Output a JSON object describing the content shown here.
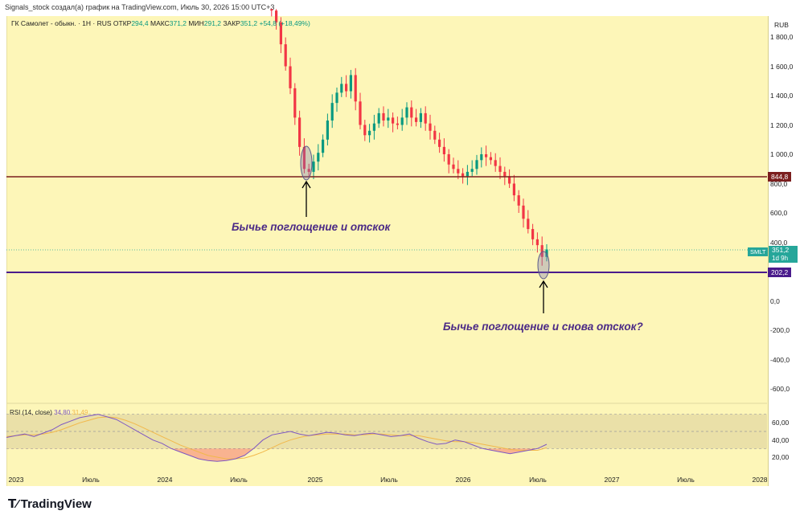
{
  "attribution": "Signals_stock создал(а) график на TradingView.com, Июль 30, 2026 15:00 UTC+3",
  "legend": {
    "symbol": "ГК Самолет - обыкн. · 1Н · RUS",
    "open_label": "ОТКР",
    "open": "294,4",
    "high_label": "МАКС",
    "high": "371,2",
    "low_label": "МИН",
    "low": "291,2",
    "close_label": "ЗАКР",
    "close": "351,2",
    "change": "+54,8 (+18,49%)"
  },
  "currency": "RUB",
  "brand": "TradingView",
  "colors": {
    "background": "#fdf6b8",
    "up": "#089981",
    "down": "#f23645",
    "resistance_line": "#7b1e1e",
    "support_line": "#4a1b8c",
    "rsi_line": "#7e57c2",
    "rsi_ma": "#f2b84b",
    "annotation": "#4b2a86"
  },
  "price_tags": {
    "level_high": "844,8",
    "level_low": "202,2",
    "symbol": "SMLT",
    "last": "351,2",
    "countdown": "1d 9h"
  },
  "annotations": [
    "Бычье поглощение и отскок",
    "Бычье поглощение и снова отскок?"
  ],
  "rsi": {
    "label": "RSI (14, close)",
    "value": "34,80",
    "ma_value": "31,49",
    "ticks": [
      "60,00",
      "40,00",
      "20,00"
    ],
    "upper_band": 70,
    "lower_band": 30,
    "values": [
      43,
      45,
      47,
      44,
      48,
      52,
      58,
      62,
      66,
      68,
      70,
      67,
      64,
      58,
      52,
      46,
      40,
      36,
      30,
      26,
      22,
      18,
      16,
      15,
      16,
      18,
      22,
      30,
      40,
      46,
      48,
      50,
      47,
      45,
      47,
      49,
      48,
      46,
      45,
      47,
      48,
      46,
      44,
      45,
      47,
      42,
      38,
      35,
      36,
      40,
      38,
      34,
      30,
      28,
      26,
      24,
      26,
      28,
      30,
      35
    ],
    "ma": [
      44,
      45,
      46,
      46,
      47,
      49,
      52,
      56,
      60,
      63,
      66,
      67,
      66,
      63,
      59,
      54,
      49,
      44,
      39,
      34,
      30,
      26,
      22,
      20,
      18,
      18,
      19,
      22,
      26,
      31,
      36,
      40,
      43,
      45,
      46,
      47,
      47,
      47,
      46,
      46,
      47,
      47,
      46,
      45,
      45,
      45,
      43,
      41,
      39,
      38,
      38,
      37,
      35,
      33,
      31,
      29,
      28,
      28,
      28,
      31
    ]
  },
  "chart_data": {
    "type": "candlestick",
    "title": "ГК Самолет - обыкн. · 1Н · RUS",
    "ylim": [
      -700,
      2000
    ],
    "yticks": [
      "1 800,0",
      "1 600,0",
      "1 400,0",
      "1 200,0",
      "1 000,0",
      "800,0",
      "600,0",
      "400,0",
      "200,0",
      "0,0",
      "-200,0",
      "-400,0",
      "-600,0"
    ],
    "ytick_values": [
      1800,
      1600,
      1400,
      1200,
      1000,
      800,
      600,
      400,
      200,
      0,
      -200,
      -400,
      -600
    ],
    "x_labels": [
      "2023",
      "Июль",
      "2024",
      "Июль",
      "2025",
      "Июль",
      "2026",
      "Июль",
      "2027",
      "Июль",
      "2028"
    ],
    "levels": [
      844.8,
      202.2
    ],
    "last_price": 351.2,
    "candles_close": [
      2050,
      1980,
      1900,
      1750,
      1600,
      1450,
      1250,
      1050,
      900,
      880,
      950,
      1010,
      1100,
      1230,
      1350,
      1420,
      1480,
      1430,
      1540,
      1360,
      1200,
      1130,
      1160,
      1210,
      1280,
      1230,
      1250,
      1210,
      1200,
      1250,
      1320,
      1250,
      1220,
      1280,
      1210,
      1160,
      1100,
      1050,
      1000,
      930,
      900,
      870,
      850,
      880,
      900,
      960,
      1000,
      980,
      960,
      920,
      880,
      850,
      800,
      720,
      650,
      560,
      490,
      420,
      380,
      300,
      351
    ]
  }
}
